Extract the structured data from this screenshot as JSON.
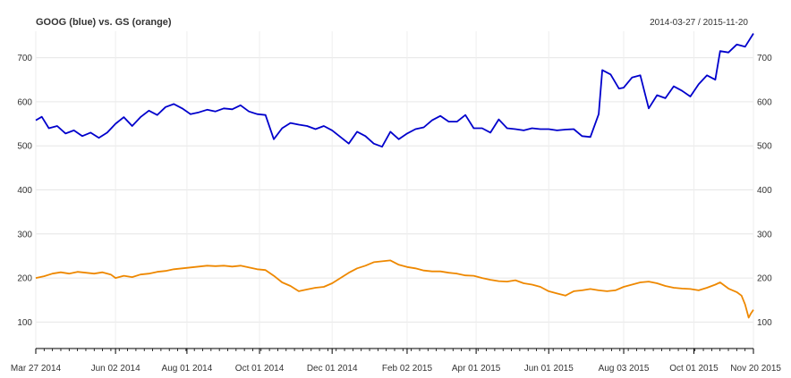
{
  "chart_data": {
    "type": "line",
    "title": "GOOG (blue) vs. GS (orange)",
    "date_range": "2014-03-27 / 2015-11-20",
    "xlabel": "",
    "ylabel": "",
    "ylim": [
      40,
      760
    ],
    "y_ticks": [
      100,
      200,
      300,
      400,
      500,
      600,
      700
    ],
    "y_tick_labels": [
      "100",
      "200",
      "300",
      "400",
      "500",
      "600",
      "700"
    ],
    "y_axis_sides": [
      "left",
      "right"
    ],
    "grid": true,
    "x_range": [
      "2014-03-27",
      "2015-11-20"
    ],
    "x_tick_labels": [
      {
        "date": "2014-03-27",
        "label": "Mar 27 2014"
      },
      {
        "date": "2014-06-02",
        "label": "Jun 02 2014"
      },
      {
        "date": "2014-08-01",
        "label": "Aug 01 2014"
      },
      {
        "date": "2014-10-01",
        "label": "Oct 01 2014"
      },
      {
        "date": "2014-12-01",
        "label": "Dec 01 2014"
      },
      {
        "date": "2015-02-02",
        "label": "Feb 02 2015"
      },
      {
        "date": "2015-04-01",
        "label": "Apr 01 2015"
      },
      {
        "date": "2015-06-01",
        "label": "Jun 01 2015"
      },
      {
        "date": "2015-08-03",
        "label": "Aug 03 2015"
      },
      {
        "date": "2015-10-01",
        "label": "Oct 01 2015"
      },
      {
        "date": "2015-11-20",
        "label": "Nov 20 2015"
      }
    ],
    "series": [
      {
        "name": "GOOG",
        "color": "#0000cc",
        "points": [
          [
            "2014-03-27",
            558
          ],
          [
            "2014-04-01",
            566
          ],
          [
            "2014-04-07",
            540
          ],
          [
            "2014-04-14",
            545
          ],
          [
            "2014-04-21",
            528
          ],
          [
            "2014-04-28",
            535
          ],
          [
            "2014-05-05",
            522
          ],
          [
            "2014-05-12",
            530
          ],
          [
            "2014-05-19",
            518
          ],
          [
            "2014-05-26",
            530
          ],
          [
            "2014-06-02",
            550
          ],
          [
            "2014-06-09",
            565
          ],
          [
            "2014-06-16",
            545
          ],
          [
            "2014-06-23",
            565
          ],
          [
            "2014-06-30",
            580
          ],
          [
            "2014-07-07",
            570
          ],
          [
            "2014-07-14",
            588
          ],
          [
            "2014-07-21",
            595
          ],
          [
            "2014-07-28",
            585
          ],
          [
            "2014-08-04",
            572
          ],
          [
            "2014-08-11",
            576
          ],
          [
            "2014-08-18",
            582
          ],
          [
            "2014-08-25",
            578
          ],
          [
            "2014-09-01",
            585
          ],
          [
            "2014-09-08",
            583
          ],
          [
            "2014-09-15",
            592
          ],
          [
            "2014-09-22",
            578
          ],
          [
            "2014-09-29",
            572
          ],
          [
            "2014-10-06",
            570
          ],
          [
            "2014-10-13",
            515
          ],
          [
            "2014-10-20",
            540
          ],
          [
            "2014-10-27",
            552
          ],
          [
            "2014-11-03",
            548
          ],
          [
            "2014-11-10",
            545
          ],
          [
            "2014-11-17",
            538
          ],
          [
            "2014-11-24",
            545
          ],
          [
            "2014-12-01",
            535
          ],
          [
            "2014-12-08",
            520
          ],
          [
            "2014-12-15",
            505
          ],
          [
            "2014-12-22",
            532
          ],
          [
            "2014-12-29",
            522
          ],
          [
            "2015-01-05",
            505
          ],
          [
            "2015-01-12",
            498
          ],
          [
            "2015-01-19",
            532
          ],
          [
            "2015-01-26",
            515
          ],
          [
            "2015-02-02",
            528
          ],
          [
            "2015-02-09",
            538
          ],
          [
            "2015-02-16",
            542
          ],
          [
            "2015-02-23",
            558
          ],
          [
            "2015-03-02",
            568
          ],
          [
            "2015-03-09",
            555
          ],
          [
            "2015-03-16",
            555
          ],
          [
            "2015-03-23",
            570
          ],
          [
            "2015-03-30",
            540
          ],
          [
            "2015-04-06",
            540
          ],
          [
            "2015-04-13",
            530
          ],
          [
            "2015-04-20",
            560
          ],
          [
            "2015-04-27",
            540
          ],
          [
            "2015-05-04",
            538
          ],
          [
            "2015-05-11",
            535
          ],
          [
            "2015-05-18",
            540
          ],
          [
            "2015-05-25",
            538
          ],
          [
            "2015-06-01",
            538
          ],
          [
            "2015-06-08",
            535
          ],
          [
            "2015-06-15",
            537
          ],
          [
            "2015-06-22",
            538
          ],
          [
            "2015-06-29",
            522
          ],
          [
            "2015-07-06",
            520
          ],
          [
            "2015-07-13",
            572
          ],
          [
            "2015-07-16",
            672
          ],
          [
            "2015-07-23",
            662
          ],
          [
            "2015-07-30",
            630
          ],
          [
            "2015-08-03",
            632
          ],
          [
            "2015-08-10",
            655
          ],
          [
            "2015-08-17",
            660
          ],
          [
            "2015-08-24",
            585
          ],
          [
            "2015-08-31",
            615
          ],
          [
            "2015-09-07",
            608
          ],
          [
            "2015-09-14",
            635
          ],
          [
            "2015-09-21",
            625
          ],
          [
            "2015-09-28",
            612
          ],
          [
            "2015-10-05",
            640
          ],
          [
            "2015-10-12",
            660
          ],
          [
            "2015-10-19",
            650
          ],
          [
            "2015-10-23",
            715
          ],
          [
            "2015-10-30",
            712
          ],
          [
            "2015-11-06",
            730
          ],
          [
            "2015-11-13",
            725
          ],
          [
            "2015-11-20",
            755
          ]
        ]
      },
      {
        "name": "GS",
        "color": "#ee8800",
        "points": [
          [
            "2014-03-27",
            200
          ],
          [
            "2014-04-03",
            204
          ],
          [
            "2014-04-10",
            210
          ],
          [
            "2014-04-17",
            213
          ],
          [
            "2014-04-24",
            210
          ],
          [
            "2014-05-01",
            214
          ],
          [
            "2014-05-08",
            212
          ],
          [
            "2014-05-15",
            210
          ],
          [
            "2014-05-22",
            213
          ],
          [
            "2014-05-29",
            208
          ],
          [
            "2014-06-02",
            200
          ],
          [
            "2014-06-09",
            205
          ],
          [
            "2014-06-16",
            202
          ],
          [
            "2014-06-23",
            208
          ],
          [
            "2014-06-30",
            210
          ],
          [
            "2014-07-07",
            214
          ],
          [
            "2014-07-14",
            216
          ],
          [
            "2014-07-21",
            220
          ],
          [
            "2014-07-28",
            222
          ],
          [
            "2014-08-04",
            224
          ],
          [
            "2014-08-11",
            226
          ],
          [
            "2014-08-18",
            228
          ],
          [
            "2014-08-25",
            227
          ],
          [
            "2014-09-01",
            228
          ],
          [
            "2014-09-08",
            226
          ],
          [
            "2014-09-15",
            228
          ],
          [
            "2014-09-22",
            224
          ],
          [
            "2014-09-29",
            220
          ],
          [
            "2014-10-06",
            218
          ],
          [
            "2014-10-13",
            205
          ],
          [
            "2014-10-20",
            190
          ],
          [
            "2014-10-27",
            182
          ],
          [
            "2014-11-03",
            170
          ],
          [
            "2014-11-10",
            174
          ],
          [
            "2014-11-17",
            178
          ],
          [
            "2014-11-24",
            180
          ],
          [
            "2014-12-01",
            188
          ],
          [
            "2014-12-08",
            200
          ],
          [
            "2014-12-15",
            212
          ],
          [
            "2014-12-22",
            222
          ],
          [
            "2014-12-29",
            228
          ],
          [
            "2015-01-05",
            236
          ],
          [
            "2015-01-12",
            238
          ],
          [
            "2015-01-19",
            240
          ],
          [
            "2015-01-26",
            230
          ],
          [
            "2015-02-02",
            225
          ],
          [
            "2015-02-09",
            222
          ],
          [
            "2015-02-16",
            217
          ],
          [
            "2015-02-23",
            215
          ],
          [
            "2015-03-02",
            215
          ],
          [
            "2015-03-09",
            212
          ],
          [
            "2015-03-16",
            210
          ],
          [
            "2015-03-23",
            206
          ],
          [
            "2015-03-30",
            205
          ],
          [
            "2015-04-06",
            200
          ],
          [
            "2015-04-13",
            196
          ],
          [
            "2015-04-20",
            193
          ],
          [
            "2015-04-27",
            192
          ],
          [
            "2015-05-04",
            195
          ],
          [
            "2015-05-11",
            188
          ],
          [
            "2015-05-18",
            185
          ],
          [
            "2015-05-25",
            180
          ],
          [
            "2015-06-01",
            170
          ],
          [
            "2015-06-08",
            165
          ],
          [
            "2015-06-15",
            160
          ],
          [
            "2015-06-22",
            170
          ],
          [
            "2015-06-29",
            172
          ],
          [
            "2015-07-06",
            175
          ],
          [
            "2015-07-13",
            172
          ],
          [
            "2015-07-20",
            170
          ],
          [
            "2015-07-27",
            172
          ],
          [
            "2015-08-03",
            180
          ],
          [
            "2015-08-10",
            185
          ],
          [
            "2015-08-17",
            190
          ],
          [
            "2015-08-24",
            192
          ],
          [
            "2015-08-31",
            188
          ],
          [
            "2015-09-07",
            182
          ],
          [
            "2015-09-14",
            178
          ],
          [
            "2015-09-21",
            176
          ],
          [
            "2015-09-28",
            175
          ],
          [
            "2015-10-05",
            172
          ],
          [
            "2015-10-12",
            178
          ],
          [
            "2015-10-19",
            185
          ],
          [
            "2015-10-23",
            190
          ],
          [
            "2015-10-30",
            176
          ],
          [
            "2015-11-06",
            168
          ],
          [
            "2015-11-10",
            160
          ],
          [
            "2015-11-13",
            140
          ],
          [
            "2015-11-16",
            110
          ],
          [
            "2015-11-18",
            120
          ],
          [
            "2015-11-20",
            128
          ]
        ]
      }
    ]
  }
}
